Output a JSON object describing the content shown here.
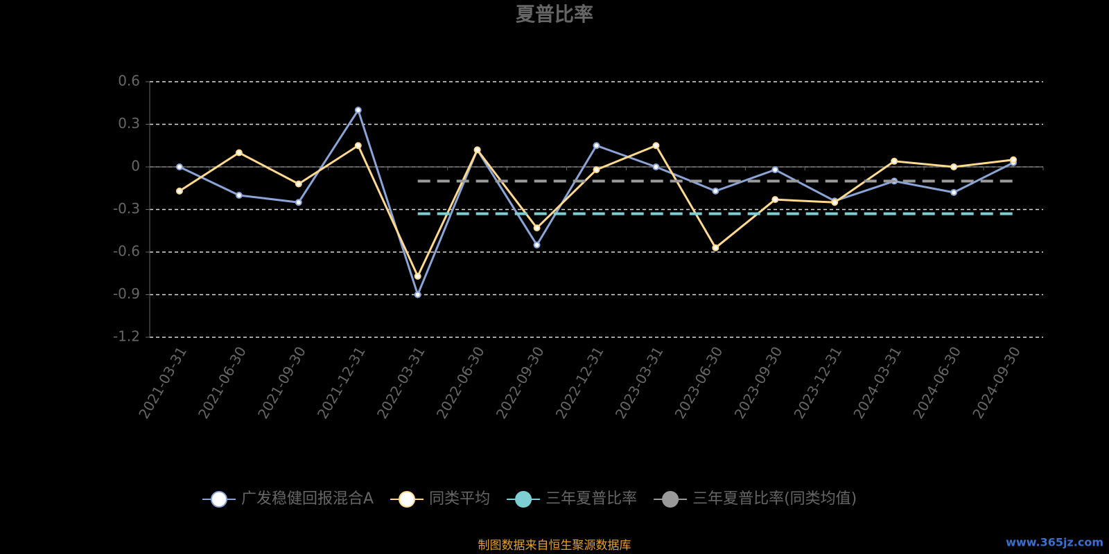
{
  "chart_data": {
    "type": "line",
    "title": "夏普比率",
    "categories": [
      "2021-03-31",
      "2021-06-30",
      "2021-09-30",
      "2021-12-31",
      "2022-03-31",
      "2022-06-30",
      "2022-09-30",
      "2022-12-31",
      "2023-03-31",
      "2023-06-30",
      "2023-09-30",
      "2023-12-31",
      "2024-03-31",
      "2024-06-30",
      "2024-09-30"
    ],
    "series": [
      {
        "name": "广发稳健回报混合A",
        "color": "#8aa4d6",
        "markers": true,
        "values": [
          0.0,
          -0.2,
          -0.25,
          0.4,
          -0.9,
          0.12,
          -0.55,
          0.15,
          0.0,
          -0.17,
          -0.02,
          -0.24,
          -0.1,
          -0.18,
          0.03
        ]
      },
      {
        "name": "同类平均",
        "color": "#ffd98e",
        "markers": true,
        "values": [
          -0.17,
          0.1,
          -0.12,
          0.15,
          -0.77,
          0.12,
          -0.43,
          -0.02,
          0.15,
          -0.57,
          -0.23,
          -0.25,
          0.04,
          0.0,
          0.05
        ]
      },
      {
        "name": "三年夏普比率",
        "color": "#7ecfd4",
        "dashed": true,
        "values": [
          null,
          null,
          null,
          null,
          -0.33,
          -0.33,
          -0.33,
          -0.33,
          -0.33,
          -0.33,
          -0.33,
          -0.33,
          -0.33,
          -0.33,
          -0.33
        ]
      },
      {
        "name": "三年夏普比率(同类均值)",
        "color": "#9a9a9a",
        "dashed": true,
        "values": [
          null,
          null,
          null,
          null,
          -0.1,
          -0.1,
          -0.1,
          -0.1,
          -0.1,
          -0.1,
          -0.1,
          -0.1,
          -0.1,
          -0.1,
          -0.1
        ]
      }
    ],
    "ylim": [
      -1.2,
      0.6
    ],
    "yticks": [
      0.6,
      0.3,
      0,
      -0.3,
      -0.6,
      -0.9,
      -1.2
    ],
    "grid": true,
    "legend": "bottom",
    "source": "制图数据来自恒生聚源数据库",
    "watermark": "www.365jz.com"
  }
}
